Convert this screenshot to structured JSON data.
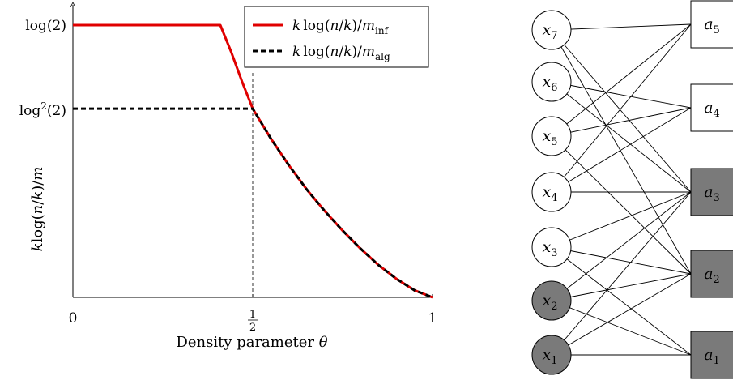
{
  "chart_data": {
    "type": "line",
    "title": "",
    "xlabel_prefix": "Density parameter ",
    "xlabel_symbol": "θ",
    "ylabel": "k log(n/k)/m",
    "xlim": [
      0,
      1
    ],
    "x_ticks": [
      {
        "value": 0,
        "label": "0"
      },
      {
        "value": 0.5,
        "label": "1/2",
        "num": "1",
        "den": "2"
      },
      {
        "value": 1,
        "label": "1"
      }
    ],
    "y_ticks": [
      {
        "value": 0.6931,
        "label": "log(2)",
        "sup": ""
      },
      {
        "value": 0.4805,
        "label": "log²(2)",
        "sup": "2"
      }
    ],
    "series": [
      {
        "name": "k log(n/k)/m_inf",
        "name_parts": {
          "k": "k",
          "mid": "log(",
          "n": "n",
          "slash": "/",
          "k2": "k",
          "close": ")/",
          "m": "m",
          "sub": "inf"
        },
        "color": "#e00000",
        "style": "solid",
        "x": [
          0,
          0.41,
          0.44,
          0.47,
          0.5,
          0.55,
          0.6,
          0.65,
          0.7,
          0.75,
          0.8,
          0.85,
          0.9,
          0.95,
          1.0
        ],
        "y": [
          0.6931,
          0.6931,
          0.625,
          0.55,
          0.4805,
          0.405,
          0.337,
          0.275,
          0.22,
          0.17,
          0.124,
          0.082,
          0.047,
          0.018,
          0.0
        ]
      },
      {
        "name": "k log(n/k)/m_alg",
        "name_parts": {
          "k": "k",
          "mid": "log(",
          "n": "n",
          "slash": "/",
          "k2": "k",
          "close": ")/",
          "m": "m",
          "sub": "alg"
        },
        "color": "#000000",
        "style": "dashed",
        "x": [
          0,
          0.5,
          0.55,
          0.6,
          0.65,
          0.7,
          0.75,
          0.8,
          0.85,
          0.9,
          0.95,
          1.0
        ],
        "y": [
          0.4805,
          0.4805,
          0.405,
          0.337,
          0.275,
          0.22,
          0.17,
          0.124,
          0.082,
          0.047,
          0.018,
          0.0
        ]
      }
    ],
    "legend_position": "top-right"
  },
  "graph": {
    "left_nodes": [
      {
        "id": "x7",
        "base": "x",
        "sub": "7",
        "shaded": false
      },
      {
        "id": "x6",
        "base": "x",
        "sub": "6",
        "shaded": false
      },
      {
        "id": "x5",
        "base": "x",
        "sub": "5",
        "shaded": false
      },
      {
        "id": "x4",
        "base": "x",
        "sub": "4",
        "shaded": false
      },
      {
        "id": "x3",
        "base": "x",
        "sub": "3",
        "shaded": false
      },
      {
        "id": "x2",
        "base": "x",
        "sub": "2",
        "shaded": true
      },
      {
        "id": "x1",
        "base": "x",
        "sub": "1",
        "shaded": true
      }
    ],
    "right_nodes": [
      {
        "id": "a5",
        "base": "a",
        "sub": "5",
        "shaded": false
      },
      {
        "id": "a4",
        "base": "a",
        "sub": "4",
        "shaded": false
      },
      {
        "id": "a3",
        "base": "a",
        "sub": "3",
        "shaded": true
      },
      {
        "id": "a2",
        "base": "a",
        "sub": "2",
        "shaded": true
      },
      {
        "id": "a1",
        "base": "a",
        "sub": "1",
        "shaded": true
      }
    ],
    "edges": [
      [
        "x7",
        "a5"
      ],
      [
        "x7",
        "a3"
      ],
      [
        "x7",
        "a2"
      ],
      [
        "x6",
        "a4"
      ],
      [
        "x6",
        "a3"
      ],
      [
        "x5",
        "a5"
      ],
      [
        "x5",
        "a4"
      ],
      [
        "x5",
        "a2"
      ],
      [
        "x4",
        "a5"
      ],
      [
        "x4",
        "a4"
      ],
      [
        "x4",
        "a3"
      ],
      [
        "x3",
        "a3"
      ],
      [
        "x3",
        "a2"
      ],
      [
        "x3",
        "a1"
      ],
      [
        "x2",
        "a3"
      ],
      [
        "x2",
        "a2"
      ],
      [
        "x2",
        "a1"
      ],
      [
        "x1",
        "a3"
      ],
      [
        "x1",
        "a2"
      ],
      [
        "x1",
        "a1"
      ],
      [
        "x6",
        "a4"
      ],
      [
        "x2",
        "a3"
      ],
      [
        "x1",
        "a3"
      ],
      [
        "x6",
        "a4"
      ]
    ],
    "shade_color": "#7a7a7a"
  }
}
